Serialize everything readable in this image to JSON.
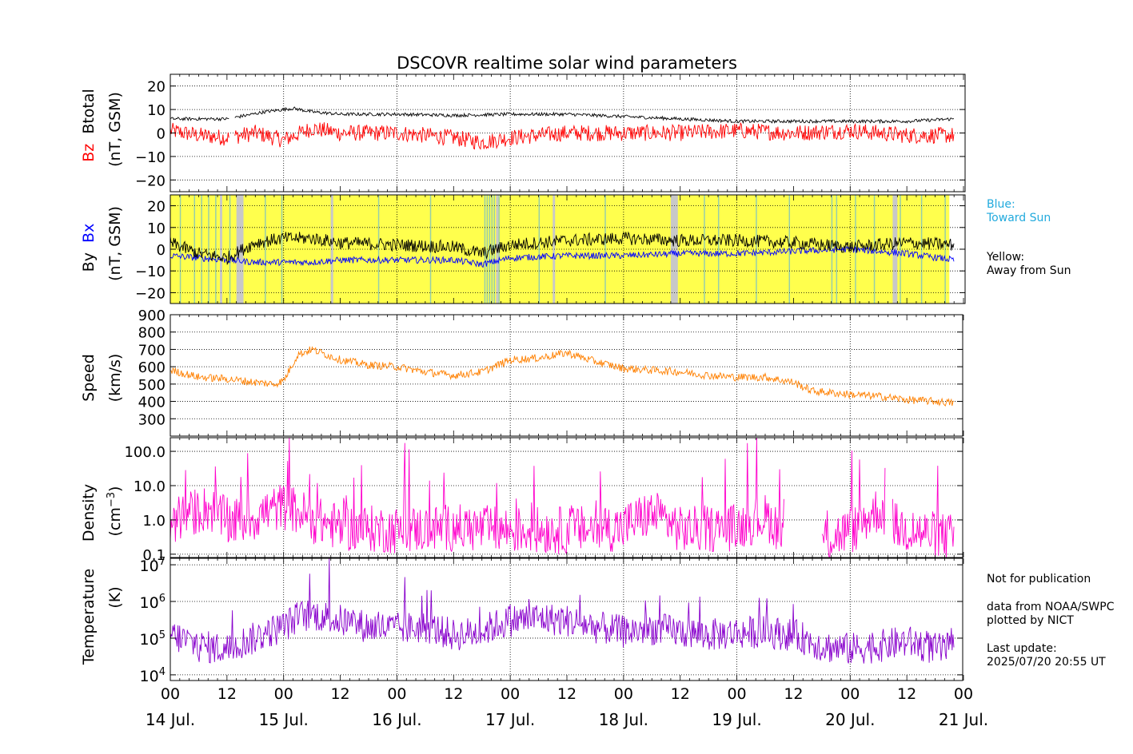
{
  "title": "DSCOVR realtime solar wind parameters",
  "legend": {
    "blue_label": "Blue:",
    "blue_text": "Toward Sun",
    "yellow_label": "Yellow:",
    "yellow_text": "Away from Sun"
  },
  "notes": {
    "not_for_publication": "Not for publication",
    "data_from": "data from NOAA/SWPC",
    "plotted_by": "plotted by NICT",
    "last_update_label": "Last update:",
    "last_update_value": "2025/07/20 20:55 UT"
  },
  "colors": {
    "btotal": "#000000",
    "bz": "#ff0000",
    "by": "#000000",
    "bx": "#0000ff",
    "speed": "#ff8000",
    "density": "#ff00cc",
    "temperature": "#8800cc",
    "away_from_sun": "#ffff4d",
    "toward_sun_text": "#22aadd"
  },
  "chart_data": [
    {
      "type": "line",
      "panel": "magnetic-field-btotal-bz",
      "ylabel_parts": [
        "Bz",
        "Btotal"
      ],
      "ylabel_unit": "(nT, GSM)",
      "ylim": [
        -25,
        25
      ],
      "yticks": [
        20,
        10,
        0,
        -10,
        -20
      ],
      "yticklabels": [
        "20",
        "10",
        "0",
        "−10",
        "−20"
      ],
      "grid": true,
      "series": [
        {
          "name": "Btotal",
          "x_hours": [
            0,
            12,
            20,
            26,
            30,
            36,
            48,
            60,
            72,
            84,
            96,
            108,
            120,
            132,
            144,
            156,
            166
          ],
          "values": [
            6,
            6,
            9,
            10.5,
            9,
            8,
            8,
            7.5,
            8,
            8,
            7,
            6,
            5,
            5,
            5,
            5,
            6
          ]
        },
        {
          "name": "Bz",
          "x_hours": [
            0,
            6,
            12,
            18,
            24,
            30,
            36,
            48,
            60,
            66,
            72,
            84,
            96,
            108,
            120,
            132,
            144,
            156,
            166
          ],
          "values": [
            1,
            -1,
            -2,
            0,
            -3,
            2,
            0,
            0,
            -2,
            -4,
            -2,
            0,
            0,
            0,
            1,
            0,
            1,
            -1,
            -1
          ]
        }
      ]
    },
    {
      "type": "line",
      "panel": "magnetic-field-by-bx",
      "ylabel_parts": [
        "By",
        "Bx"
      ],
      "ylabel_unit": "(nT, GSM)",
      "ylim": [
        -25,
        25
      ],
      "yticks": [
        20,
        10,
        0,
        -10,
        -20
      ],
      "yticklabels": [
        "20",
        "10",
        "0",
        "−10",
        "−20"
      ],
      "grid": true,
      "series": [
        {
          "name": "By",
          "x_hours": [
            0,
            6,
            12,
            18,
            24,
            30,
            36,
            48,
            60,
            66,
            72,
            84,
            96,
            108,
            120,
            132,
            144,
            156,
            166
          ],
          "values": [
            3,
            -2,
            -4,
            3,
            5,
            5,
            3,
            2,
            1,
            -2,
            2,
            4,
            5,
            4,
            4,
            3,
            1,
            3,
            2
          ]
        },
        {
          "name": "Bx",
          "x_hours": [
            0,
            6,
            12,
            18,
            24,
            30,
            36,
            48,
            60,
            66,
            72,
            84,
            96,
            108,
            120,
            132,
            144,
            156,
            166
          ],
          "values": [
            -3,
            -4,
            -5,
            -6,
            -6,
            -6,
            -5,
            -5,
            -5,
            -7,
            -4,
            -3,
            -3,
            -2,
            -2,
            -1,
            0,
            -2,
            -5
          ]
        }
      ],
      "toward_sun_hours": [
        2,
        5,
        6.5,
        8,
        9.5,
        10.5,
        12.5,
        20,
        23.5,
        34,
        44,
        55,
        66.5,
        67,
        67.5,
        68,
        68.5,
        69.5,
        78,
        92,
        113,
        116,
        124,
        131,
        140,
        141,
        145,
        149,
        154.5,
        159,
        164
      ],
      "data_gap_hours": [
        [
          10.5,
          11
        ],
        [
          14,
          15.5
        ],
        [
          34,
          34.5
        ],
        [
          69,
          69.5
        ],
        [
          81,
          81.5
        ],
        [
          106,
          107.5
        ],
        [
          153,
          154
        ]
      ]
    },
    {
      "type": "line",
      "panel": "speed",
      "ylabel": "Speed",
      "ylabel_unit": "(km/s)",
      "ylim": [
        200,
        900
      ],
      "yticks": [
        900,
        800,
        700,
        600,
        500,
        400,
        300
      ],
      "grid": true,
      "series": [
        {
          "name": "Speed",
          "x_hours": [
            0,
            6,
            12,
            18,
            22,
            24,
            27,
            30,
            36,
            42,
            48,
            54,
            60,
            66,
            72,
            78,
            84,
            90,
            96,
            102,
            108,
            114,
            120,
            126,
            132,
            136,
            144,
            150,
            156,
            162,
            166
          ],
          "values": [
            580,
            540,
            530,
            510,
            500,
            520,
            670,
            700,
            640,
            610,
            600,
            570,
            550,
            570,
            640,
            650,
            680,
            630,
            590,
            580,
            570,
            550,
            540,
            540,
            510,
            460,
            440,
            430,
            410,
            400,
            390
          ]
        }
      ]
    },
    {
      "type": "line",
      "panel": "density",
      "ylabel": "Density",
      "ylabel_unit": "(cm−3)",
      "yscale": "log",
      "ylim": [
        0.08,
        250
      ],
      "yticks": [
        100.0,
        10.0,
        1.0,
        0.1
      ],
      "yticklabels": [
        "100.0",
        "10.0",
        "1.0",
        "0.1"
      ],
      "grid": true,
      "series": [
        {
          "name": "Density",
          "x_hours": [
            0,
            4,
            8,
            12,
            18,
            24,
            30,
            36,
            48,
            60,
            72,
            84,
            96,
            102,
            108,
            120,
            126,
            130,
            140,
            146,
            150,
            154,
            160,
            166
          ],
          "values": [
            0.8,
            1.5,
            2.2,
            0.8,
            1.2,
            2.5,
            1.0,
            0.6,
            0.5,
            0.6,
            0.5,
            0.5,
            0.6,
            1.5,
            0.5,
            0.6,
            1.2,
            0.3,
            0.3,
            0.6,
            2.0,
            0.6,
            0.4,
            0.3
          ]
        }
      ]
    },
    {
      "type": "line",
      "panel": "temperature",
      "ylabel": "Temperature",
      "ylabel_unit": "(K)",
      "yscale": "log",
      "ylim": [
        7000,
        15000000
      ],
      "yticks": [
        10000000,
        1000000,
        100000,
        10000
      ],
      "yticklabels": [
        "10^7",
        "10^6",
        "10^5",
        "10^4"
      ],
      "grid": true,
      "series": [
        {
          "name": "Temperature",
          "x_hours": [
            0,
            6,
            12,
            18,
            24,
            28,
            30,
            36,
            42,
            48,
            54,
            60,
            66,
            72,
            78,
            84,
            90,
            96,
            102,
            108,
            114,
            120,
            126,
            132,
            138,
            144,
            150,
            156,
            162,
            166
          ],
          "values": [
            120000,
            60000,
            50000,
            100000,
            200000,
            400000,
            450000,
            300000,
            200000,
            180000,
            200000,
            120000,
            150000,
            300000,
            350000,
            300000,
            200000,
            150000,
            180000,
            150000,
            120000,
            140000,
            150000,
            120000,
            60000,
            50000,
            60000,
            80000,
            50000,
            50000
          ]
        }
      ]
    }
  ],
  "xaxis": {
    "range_hours": [
      0,
      168
    ],
    "hour_tick_labels": [
      "00",
      "12",
      "00",
      "12",
      "00",
      "12",
      "00",
      "12",
      "00",
      "12",
      "00",
      "12",
      "00",
      "12",
      "00"
    ],
    "date_labels": [
      "14 Jul.",
      "15 Jul.",
      "16 Jul.",
      "17 Jul.",
      "18 Jul.",
      "19 Jul.",
      "20 Jul.",
      "21 Jul."
    ]
  }
}
